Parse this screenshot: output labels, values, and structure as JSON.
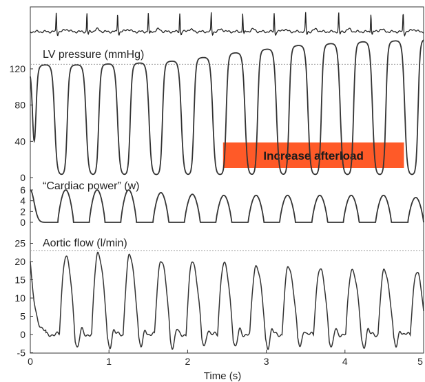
{
  "chart_data": {
    "type": "line",
    "x_axis": {
      "label": "Time (s)",
      "range": [
        0,
        5
      ],
      "ticks": [
        0,
        1,
        2,
        3,
        4,
        5
      ]
    },
    "panels": [
      {
        "id": "ecg",
        "title": "",
        "series": [
          {
            "name": "",
            "beat_times": [
              0.33,
              0.72,
              1.11,
              1.5,
              1.9,
              2.3,
              2.7,
              3.1,
              3.5,
              3.92,
              4.33,
              4.74
            ]
          }
        ]
      },
      {
        "id": "lv_pressure",
        "title": "LV pressure (mmHg)",
        "ylim": [
          0,
          140
        ],
        "yticks": [
          0,
          40,
          80,
          120
        ],
        "ref_line": 125,
        "series": [
          {
            "name": "LV pressure",
            "beats": [
              {
                "t0": 0.07,
                "peak": 122
              },
              {
                "t0": 0.47,
                "peak": 122
              },
              {
                "t0": 0.87,
                "peak": 123
              },
              {
                "t0": 1.27,
                "peak": 124
              },
              {
                "t0": 1.68,
                "peak": 126
              },
              {
                "t0": 2.08,
                "peak": 130
              },
              {
                "t0": 2.49,
                "peak": 135
              },
              {
                "t0": 2.89,
                "peak": 139
              },
              {
                "t0": 3.29,
                "peak": 143
              },
              {
                "t0": 3.7,
                "peak": 145
              },
              {
                "t0": 4.11,
                "peak": 147
              },
              {
                "t0": 4.52,
                "peak": 148
              },
              {
                "t0": 4.93,
                "peak": 150
              }
            ],
            "start_value": 120,
            "min_value": 3
          }
        ]
      },
      {
        "id": "cardiac_power",
        "title": "“Cardiac power” (w)",
        "ylim": [
          0,
          6
        ],
        "yticks": [
          0,
          2,
          4,
          6
        ],
        "series": [
          {
            "name": "Cardiac power",
            "beats": [
              {
                "t0": 0.35,
                "peak": 6
              },
              {
                "t0": 0.75,
                "peak": 6
              },
              {
                "t0": 1.15,
                "peak": 6
              },
              {
                "t0": 1.56,
                "peak": 5.5
              },
              {
                "t0": 1.96,
                "peak": 5.2
              },
              {
                "t0": 2.36,
                "peak": 5.0
              },
              {
                "t0": 2.77,
                "peak": 5.0
              },
              {
                "t0": 3.17,
                "peak": 5.0
              },
              {
                "t0": 3.58,
                "peak": 5.0
              },
              {
                "t0": 3.98,
                "peak": 5.0
              },
              {
                "t0": 4.39,
                "peak": 5.0
              },
              {
                "t0": 4.8,
                "peak": 4.6
              }
            ],
            "start_value": 6
          }
        ]
      },
      {
        "id": "aortic_flow",
        "title": "Aortic flow (l/min)",
        "ylim": [
          -5,
          25
        ],
        "yticks": [
          -5,
          0,
          5,
          10,
          15,
          20,
          25
        ],
        "ref_line": 23,
        "series": [
          {
            "name": "Aortic flow",
            "beats": [
              {
                "t": 0.45,
                "peak": 21.5
              },
              {
                "t": 0.86,
                "peak": 22.5
              },
              {
                "t": 1.26,
                "peak": 21.5
              },
              {
                "t": 1.66,
                "peak": 20.5
              },
              {
                "t": 2.06,
                "peak": 20
              },
              {
                "t": 2.46,
                "peak": 19.5
              },
              {
                "t": 2.87,
                "peak": 19
              },
              {
                "t": 3.28,
                "peak": 18.5
              },
              {
                "t": 3.68,
                "peak": 18
              },
              {
                "t": 4.09,
                "peak": 18
              },
              {
                "t": 4.5,
                "peak": 17.5
              },
              {
                "t": 4.91,
                "peak": 17
              }
            ],
            "start_value": 20
          }
        ]
      }
    ],
    "annotations": [
      {
        "text": "Increase afterload",
        "color": "#ff5a28",
        "from_x": 2.45,
        "to_x": 4.75
      }
    ]
  }
}
